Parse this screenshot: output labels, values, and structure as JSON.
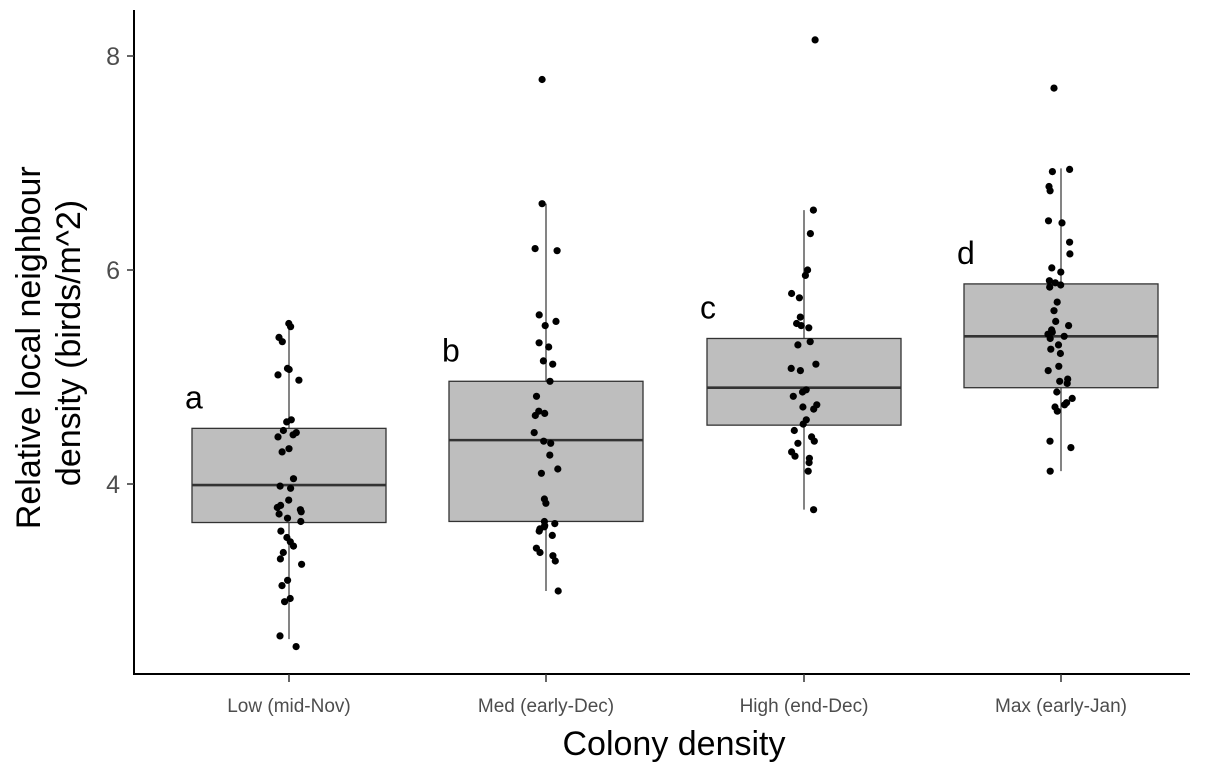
{
  "chart_data": {
    "type": "box",
    "xlabel": "Colony density",
    "ylabel_lines": [
      "Relative local neighbour",
      "density (birds/m^2)"
    ],
    "yticks": [
      4,
      6,
      8
    ],
    "ylim": [
      2.3,
      8.45
    ],
    "grid": false,
    "legend": "none",
    "colors": {
      "box_fill": "#bebebe",
      "box_stroke": "#333333",
      "point": "#000000"
    },
    "categories": [
      "Low (mid-Nov)",
      "Med (early-Dec)",
      "High (end-Dec)",
      "Max (early-Jan)"
    ],
    "boxes": [
      {
        "label": "a",
        "q1": 3.64,
        "median": 3.99,
        "q3": 4.52,
        "whisker_low": 2.55,
        "whisker_high": 5.5
      },
      {
        "label": "b",
        "q1": 3.65,
        "median": 4.41,
        "q3": 4.96,
        "whisker_low": 3.0,
        "whisker_high": 6.62
      },
      {
        "label": "c",
        "q1": 4.55,
        "median": 4.9,
        "q3": 5.36,
        "whisker_low": 3.76,
        "whisker_high": 6.56
      },
      {
        "label": "d",
        "q1": 4.9,
        "median": 5.38,
        "q3": 5.87,
        "whisker_low": 4.12,
        "whisker_high": 6.95
      }
    ],
    "points": [
      [
        5.5,
        5.47,
        5.37,
        5.33,
        5.08,
        5.07,
        5.02,
        4.97,
        4.6,
        4.58,
        4.5,
        4.48,
        4.46,
        4.44,
        4.33,
        4.3,
        4.05,
        3.98,
        3.96,
        3.85,
        3.8,
        3.78,
        3.76,
        3.74,
        3.72,
        3.68,
        3.65,
        3.56,
        3.5,
        3.46,
        3.42,
        3.36,
        3.3,
        3.25,
        3.1,
        3.05,
        2.93,
        2.9,
        2.58,
        2.48
      ],
      [
        7.78,
        6.62,
        6.2,
        6.18,
        5.58,
        5.52,
        5.48,
        5.32,
        5.28,
        5.15,
        5.12,
        4.96,
        4.82,
        4.68,
        4.66,
        4.64,
        4.48,
        4.4,
        4.38,
        4.27,
        4.14,
        4.1,
        3.86,
        3.82,
        3.65,
        3.63,
        3.61,
        3.6,
        3.58,
        3.56,
        3.52,
        3.4,
        3.36,
        3.33,
        3.28,
        3.0
      ],
      [
        8.15,
        6.56,
        6.34,
        6.0,
        5.95,
        5.78,
        5.74,
        5.56,
        5.5,
        5.48,
        5.46,
        5.33,
        5.3,
        5.12,
        5.08,
        5.06,
        4.88,
        4.86,
        4.82,
        4.74,
        4.72,
        4.7,
        4.6,
        4.56,
        4.5,
        4.44,
        4.4,
        4.38,
        4.3,
        4.26,
        4.24,
        4.2,
        4.12,
        3.76
      ],
      [
        7.7,
        6.94,
        6.92,
        6.78,
        6.74,
        6.46,
        6.44,
        6.26,
        6.15,
        6.02,
        5.98,
        5.9,
        5.88,
        5.86,
        5.84,
        5.7,
        5.62,
        5.52,
        5.48,
        5.44,
        5.42,
        5.4,
        5.38,
        5.36,
        5.3,
        5.26,
        5.22,
        5.1,
        5.06,
        4.98,
        4.96,
        4.94,
        4.86,
        4.8,
        4.76,
        4.74,
        4.72,
        4.68,
        4.4,
        4.34,
        4.12
      ]
    ]
  }
}
